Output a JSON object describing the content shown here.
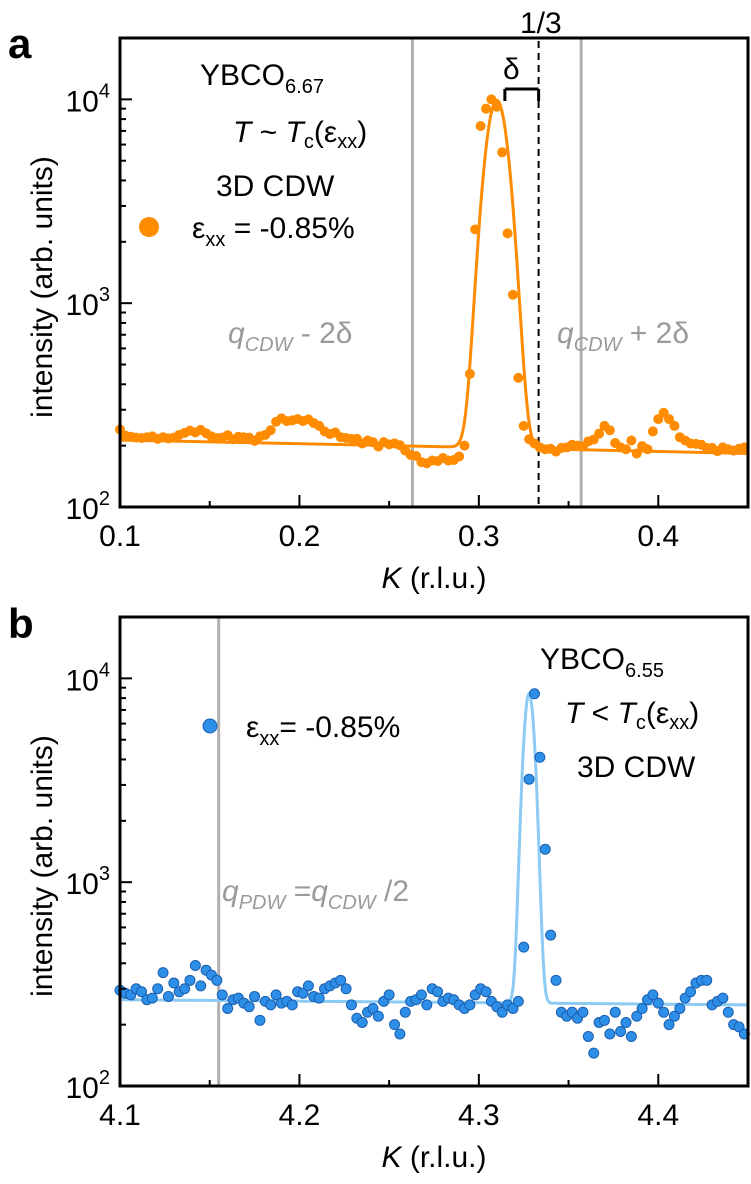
{
  "chart_data": [
    {
      "panel": "a",
      "type": "scatter",
      "xlabel_italic": "K",
      "xlabel_rest": " (r.l.u.)",
      "ylabel": "intensity (arb. units)",
      "xlim": [
        0.1,
        0.45
      ],
      "ylim": [
        100,
        20000
      ],
      "yscale": "log",
      "x_ticks": [
        "0.1",
        "0.2",
        "0.3",
        "0.4"
      ],
      "x_tick_values": [
        0.1,
        0.2,
        0.3,
        0.4
      ],
      "y_ticks": [
        {
          "base": "10",
          "exp": "2",
          "value": 100
        },
        {
          "base": "10",
          "exp": "3",
          "value": 1000
        },
        {
          "base": "10",
          "exp": "4",
          "value": 10000
        }
      ],
      "colors": {
        "points": "#ff8c00",
        "fit": "#ff8c00",
        "markers": "#b0b0b0"
      },
      "sample": {
        "base": "YBCO",
        "sub": "6.67"
      },
      "temperature": {
        "T": "T",
        "rel": " ~ ",
        "Tc": "T",
        "c": "c",
        "strain": "(ε",
        "xx": "xx",
        "close": ")"
      },
      "cdw_label": "3D CDW",
      "legend": {
        "eps": "ε",
        "xx": "xx",
        "value": " = -0.85%"
      },
      "delta_label": "δ",
      "one_third_label": "1/3",
      "marker_left": {
        "q": "q",
        "sub": "CDW",
        "rest": " - 2δ",
        "x": 0.263
      },
      "marker_right": {
        "q": "q",
        "sub": "CDW",
        "rest": " + 2δ",
        "x": 0.357
      },
      "dashed_x": 0.3333,
      "delta_bar": [
        0.3145,
        0.3333
      ],
      "peak": {
        "center": 0.31,
        "sigma": 0.0057,
        "amplitude": 9700
      },
      "background": {
        "start": 213,
        "end": 183
      },
      "points": {
        "x": [
          0.1,
          0.103,
          0.106,
          0.109,
          0.112,
          0.115,
          0.118,
          0.121,
          0.124,
          0.127,
          0.13,
          0.133,
          0.136,
          0.139,
          0.142,
          0.145,
          0.148,
          0.151,
          0.154,
          0.157,
          0.16,
          0.163,
          0.166,
          0.169,
          0.172,
          0.175,
          0.178,
          0.181,
          0.184,
          0.187,
          0.19,
          0.193,
          0.196,
          0.199,
          0.202,
          0.205,
          0.208,
          0.211,
          0.214,
          0.217,
          0.22,
          0.223,
          0.226,
          0.229,
          0.232,
          0.235,
          0.238,
          0.241,
          0.244,
          0.247,
          0.25,
          0.253,
          0.256,
          0.259,
          0.262,
          0.265,
          0.268,
          0.271,
          0.274,
          0.277,
          0.28,
          0.283,
          0.286,
          0.289,
          0.292,
          0.295,
          0.298,
          0.301,
          0.304,
          0.307,
          0.31,
          0.313,
          0.316,
          0.319,
          0.322,
          0.325,
          0.328,
          0.331,
          0.334,
          0.337,
          0.34,
          0.343,
          0.346,
          0.349,
          0.352,
          0.355,
          0.358,
          0.361,
          0.364,
          0.367,
          0.37,
          0.373,
          0.376,
          0.379,
          0.382,
          0.385,
          0.388,
          0.391,
          0.394,
          0.397,
          0.4,
          0.403,
          0.406,
          0.409,
          0.412,
          0.415,
          0.418,
          0.421,
          0.424,
          0.427,
          0.43,
          0.433,
          0.436,
          0.439,
          0.442,
          0.445,
          0.448
        ],
        "y": [
          240,
          224,
          221,
          219,
          218,
          220,
          222,
          216,
          220,
          217,
          219,
          226,
          231,
          237,
          232,
          239,
          230,
          222,
          218,
          219,
          225,
          215,
          221,
          220,
          219,
          211,
          222,
          226,
          238,
          262,
          272,
          264,
          266,
          270,
          264,
          269,
          258,
          250,
          235,
          228,
          232,
          220,
          218,
          216,
          216,
          205,
          212,
          208,
          198,
          208,
          203,
          205,
          201,
          189,
          180,
          178,
          166,
          164,
          169,
          168,
          174,
          169,
          170,
          177,
          200,
          450,
          2300,
          7400,
          9000,
          10000,
          9200,
          5500,
          2200,
          1100,
          430,
          250,
          215,
          205,
          196,
          192,
          193,
          187,
          195,
          196,
          202,
          200,
          198,
          210,
          214,
          229,
          250,
          238,
          206,
          196,
          192,
          212,
          183,
          199,
          192,
          235,
          270,
          290,
          270,
          250,
          220,
          212,
          205,
          204,
          202,
          195,
          195,
          188,
          196,
          192,
          189,
          193,
          196
        ]
      }
    },
    {
      "panel": "b",
      "type": "scatter",
      "xlabel_italic": "K",
      "xlabel_rest": " (r.l.u.)",
      "ylabel": "intensity (arb. units)",
      "xlim": [
        4.1,
        4.45
      ],
      "ylim": [
        100,
        20000
      ],
      "yscale": "log",
      "x_ticks": [
        "4.1",
        "4.2",
        "4.3",
        "4.4"
      ],
      "x_tick_values": [
        4.1,
        4.2,
        4.3,
        4.4
      ],
      "y_ticks": [
        {
          "base": "10",
          "exp": "2",
          "value": 100
        },
        {
          "base": "10",
          "exp": "3",
          "value": 1000
        },
        {
          "base": "10",
          "exp": "4",
          "value": 10000
        }
      ],
      "colors": {
        "points": "#2e8fe8",
        "fit": "#8ccbf4",
        "markers": "#b0b0b0"
      },
      "sample": {
        "base": "YBCO",
        "sub": "6.55"
      },
      "temperature": {
        "T": "T",
        "rel": " < ",
        "Tc": "T",
        "c": "c",
        "strain": "(ε",
        "xx": "xx",
        "close": ")"
      },
      "cdw_label": "3D CDW",
      "legend": {
        "eps": "ε",
        "xx": "xx",
        "value": "=  -0.85%"
      },
      "marker": {
        "q": "q",
        "sub": "PDW",
        "mid": " =",
        "q2": "q",
        "sub2": "CDW",
        "rest": " /2",
        "x": 4.155
      },
      "peak": {
        "center": 4.328,
        "sigma": 0.0028,
        "amplitude": 8200
      },
      "background": {
        "start": 265,
        "end": 250
      },
      "points": {
        "x": [
          4.1,
          4.103,
          4.106,
          4.109,
          4.112,
          4.115,
          4.118,
          4.121,
          4.124,
          4.127,
          4.13,
          4.133,
          4.136,
          4.139,
          4.142,
          4.145,
          4.148,
          4.151,
          4.154,
          4.157,
          4.16,
          4.163,
          4.166,
          4.169,
          4.172,
          4.175,
          4.178,
          4.181,
          4.184,
          4.187,
          4.19,
          4.193,
          4.196,
          4.199,
          4.202,
          4.205,
          4.208,
          4.211,
          4.214,
          4.217,
          4.22,
          4.223,
          4.226,
          4.229,
          4.232,
          4.235,
          4.238,
          4.241,
          4.244,
          4.247,
          4.25,
          4.253,
          4.256,
          4.259,
          4.262,
          4.265,
          4.268,
          4.271,
          4.274,
          4.277,
          4.28,
          4.283,
          4.286,
          4.289,
          4.292,
          4.295,
          4.298,
          4.301,
          4.304,
          4.307,
          4.31,
          4.313,
          4.316,
          4.319,
          4.322,
          4.325,
          4.328,
          4.331,
          4.334,
          4.337,
          4.34,
          4.343,
          4.346,
          4.349,
          4.352,
          4.355,
          4.358,
          4.361,
          4.364,
          4.367,
          4.37,
          4.373,
          4.376,
          4.379,
          4.382,
          4.385,
          4.388,
          4.391,
          4.394,
          4.397,
          4.4,
          4.403,
          4.406,
          4.409,
          4.412,
          4.415,
          4.418,
          4.421,
          4.424,
          4.427,
          4.43,
          4.433,
          4.436,
          4.439,
          4.442,
          4.445,
          4.448
        ],
        "y": [
          295,
          285,
          280,
          300,
          290,
          265,
          270,
          300,
          360,
          275,
          320,
          290,
          300,
          330,
          390,
          310,
          370,
          350,
          330,
          280,
          240,
          265,
          270,
          255,
          245,
          275,
          210,
          260,
          250,
          280,
          255,
          260,
          250,
          290,
          285,
          310,
          275,
          270,
          300,
          310,
          320,
          330,
          300,
          250,
          215,
          205,
          230,
          240,
          220,
          260,
          280,
          200,
          180,
          230,
          260,
          265,
          280,
          250,
          300,
          290,
          260,
          270,
          265,
          250,
          240,
          250,
          280,
          300,
          290,
          260,
          245,
          230,
          250,
          240,
          260,
          480,
          3200,
          8400,
          4100,
          1450,
          550,
          330,
          230,
          220,
          230,
          215,
          230,
          175,
          145,
          205,
          210,
          180,
          230,
          185,
          205,
          175,
          220,
          240,
          265,
          280,
          255,
          230,
          200,
          220,
          240,
          270,
          290,
          320,
          330,
          330,
          250,
          260,
          270,
          230,
          200,
          195,
          180
        ]
      }
    }
  ]
}
